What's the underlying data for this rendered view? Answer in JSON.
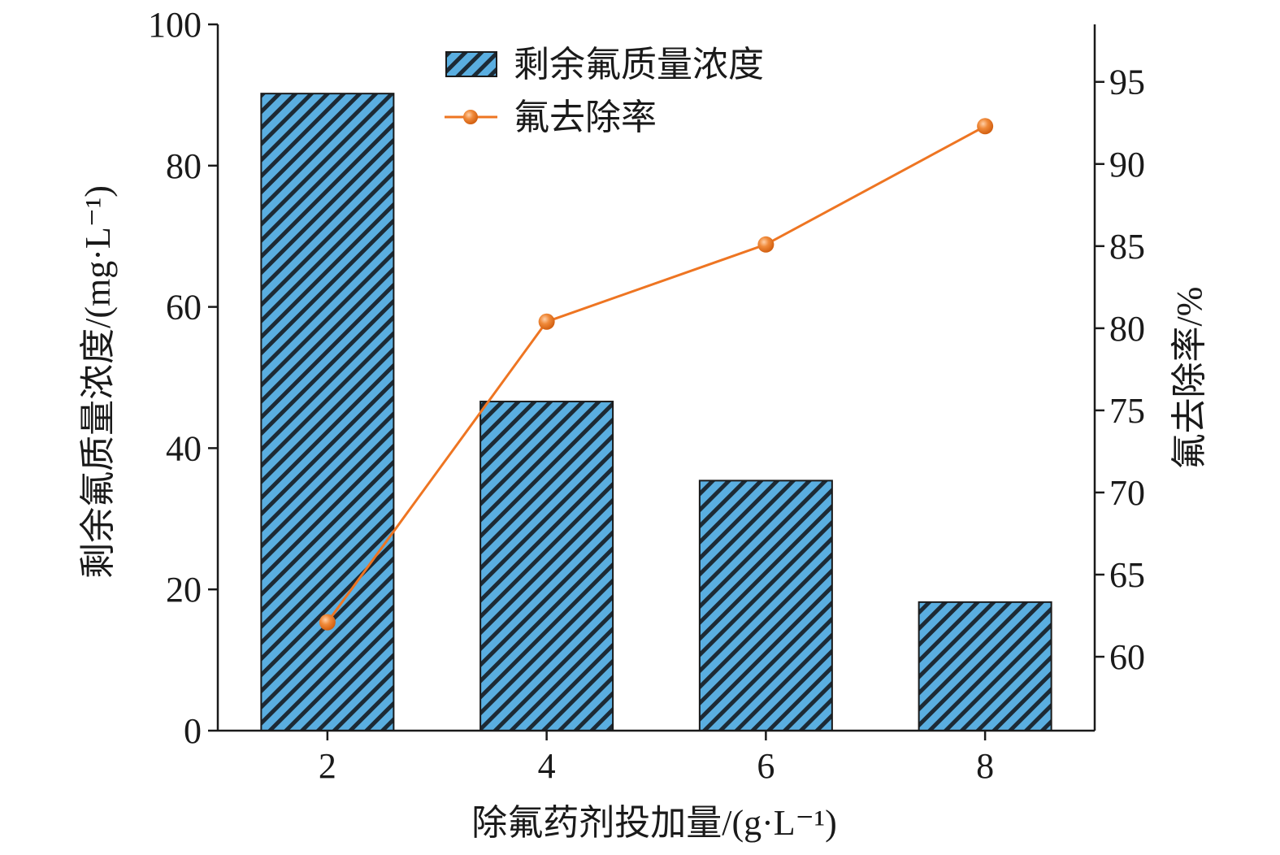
{
  "chart_data": {
    "type": "bar",
    "categories": [
      "2",
      "4",
      "6",
      "8"
    ],
    "series": [
      {
        "name": "剩余氟质量浓度",
        "type": "bar",
        "axis": "left",
        "values": [
          90.2,
          46.6,
          35.4,
          18.2
        ]
      },
      {
        "name": "氟去除率",
        "type": "line",
        "axis": "right",
        "values": [
          62.1,
          80.4,
          85.1,
          92.3
        ]
      }
    ],
    "xlabel": "除氟药剂投加量/(g·L⁻¹)",
    "ylabel": "剩余氟质量浓度/(mg·L⁻¹)",
    "y2label": "氟去除率/%",
    "ylim": [
      0,
      100
    ],
    "y2lim": [
      55.5,
      98.5
    ],
    "yticks": [
      0,
      20,
      40,
      60,
      80,
      100
    ],
    "y2ticks": [
      60,
      65,
      70,
      75,
      80,
      85,
      90,
      95
    ],
    "grid": false,
    "legend_position": "top-center",
    "colors": {
      "bar_fill": "#5aaee0",
      "bar_hatch": "#1c2a35",
      "line": "#ee7522",
      "marker": "#ee7522"
    }
  }
}
